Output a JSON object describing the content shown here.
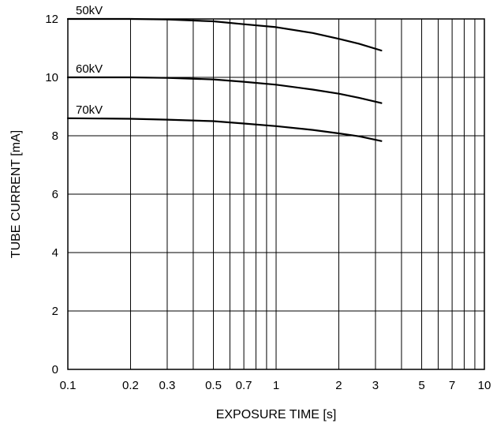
{
  "chart_data": {
    "type": "line",
    "title": "",
    "xlabel": "EXPOSURE TIME  [s]",
    "ylabel": "TUBE CURRENT  [mA]",
    "xscale": "log",
    "xlim": [
      0.1,
      10
    ],
    "ylim": [
      0,
      12
    ],
    "xticks": [
      0.1,
      0.2,
      0.3,
      0.5,
      0.7,
      1,
      2,
      3,
      5,
      7,
      10
    ],
    "xtick_labels": [
      "0.1",
      "0.2",
      "0.3",
      "0.5",
      "0.7",
      "1",
      "2",
      "3",
      "5",
      "7",
      "10"
    ],
    "x_gridlines": [
      0.1,
      0.2,
      0.3,
      0.4,
      0.5,
      0.6,
      0.7,
      0.8,
      0.9,
      1,
      2,
      3,
      4,
      5,
      6,
      7,
      8,
      9,
      10
    ],
    "yticks": [
      0,
      2,
      4,
      6,
      8,
      10,
      12
    ],
    "ytick_labels": [
      "0",
      "2",
      "4",
      "6",
      "8",
      "10",
      "12"
    ],
    "grid": true,
    "legend": "none",
    "series": [
      {
        "name": "50kV",
        "color": "#000000",
        "x": [
          0.1,
          0.2,
          0.3,
          0.5,
          0.7,
          1.0,
          1.5,
          2.0,
          2.5,
          3.2
        ],
        "y": [
          12.0,
          12.0,
          11.98,
          11.92,
          11.82,
          11.72,
          11.52,
          11.32,
          11.15,
          10.92
        ]
      },
      {
        "name": "60kV",
        "color": "#000000",
        "x": [
          0.1,
          0.2,
          0.3,
          0.5,
          0.7,
          1.0,
          1.5,
          2.0,
          2.5,
          3.2
        ],
        "y": [
          10.0,
          10.0,
          9.98,
          9.93,
          9.85,
          9.75,
          9.58,
          9.44,
          9.3,
          9.12
        ]
      },
      {
        "name": "70kV",
        "color": "#000000",
        "x": [
          0.1,
          0.2,
          0.3,
          0.5,
          0.7,
          1.0,
          1.5,
          2.0,
          2.5,
          3.2
        ],
        "y": [
          8.6,
          8.58,
          8.55,
          8.5,
          8.42,
          8.33,
          8.2,
          8.08,
          7.98,
          7.82
        ]
      }
    ]
  }
}
